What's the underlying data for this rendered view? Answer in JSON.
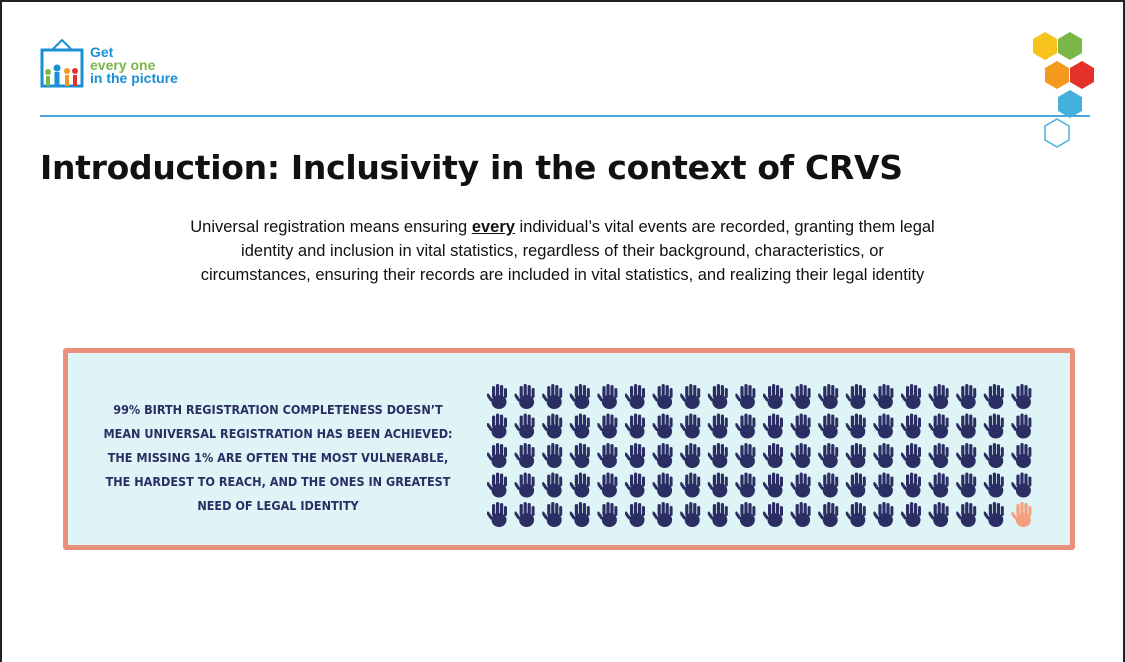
{
  "logo": {
    "line1": "Get",
    "line2": "every one",
    "line3": "in the picture"
  },
  "title": "Introduction: Inclusivity in the context of CRVS",
  "body": {
    "line1_start": "Universal registration means ensuring ",
    "line1_emphasis": "every",
    "line1_end": " individual’s vital events are recorded, granting them legal",
    "line2": "identity and inclusion in vital statistics, regardless of their background, characteristics, or",
    "line3": "circumstances, ensuring their records are included in vital statistics, and realizing their legal identity"
  },
  "callout": {
    "lines": [
      "99% BIRTH REGISTRATION COMPLETENESS DOESN’T",
      "MEAN UNIVERSAL REGISTRATION HAS BEEN ACHIEVED:",
      "THE MISSING 1% ARE OFTEN THE MOST VULNERABLE,",
      "THE HARDEST TO REACH, AND THE ONES IN GREATEST",
      "NEED OF LEGAL IDENTITY"
    ]
  }
}
